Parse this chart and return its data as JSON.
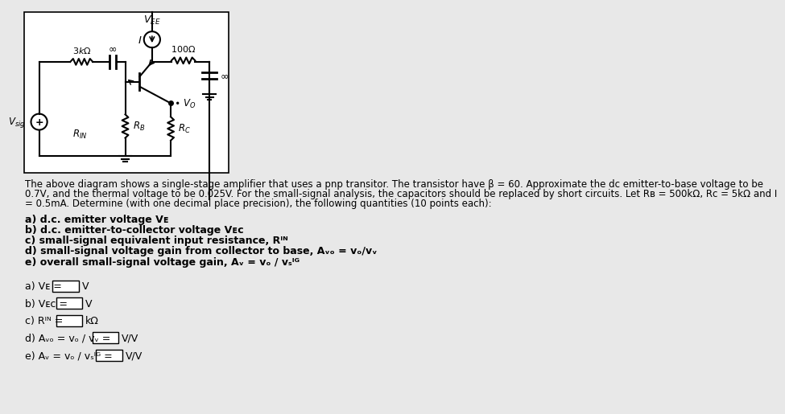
{
  "background_color": "#e8e8e8",
  "circuit_bg": "#ffffff",
  "text_color": "#000000",
  "desc_line1": "The above diagram shows a single-stage amplifier that uses a pnp transitor. The transistor have β = 60. Approximate the dc emitter-to-base voltage to be",
  "desc_line2": "0.7V, and the thermal voltage to be 0.025V. For the small-signal analysis, the capacitors should be replaced by short circuits. Let Rʙ = 500kΩ, Rᴄ = 5kΩ and I",
  "desc_line3": "= 0.5mA. Determine (with one decimal place precision), the following quantities (10 points each):",
  "questions": [
    "a) d.c. emitter voltage Vᴇ",
    "b) d.c. emitter-to-collector voltage Vᴇᴄ",
    "c) small-signal equivalent input resistance, Rᴵᴺ",
    "d) small-signal voltage gain from collector to base, Aᵥₒ = vₒ/vᵥ",
    "e) overall small-signal voltage gain, Aᵥ = vₒ / vₛᴵᴳ"
  ],
  "ans_labels": [
    "a) Vᴇ =",
    "b) Vᴇᴄ =",
    "c) Rᴵᴺ =",
    "d) Aᵥₒ = vₒ / vᵥ =",
    "e) Aᵥ = vₒ / vₛᴵᴳ ="
  ],
  "ans_units": [
    "V",
    "V",
    "kΩ",
    "V/V",
    "V/V"
  ]
}
